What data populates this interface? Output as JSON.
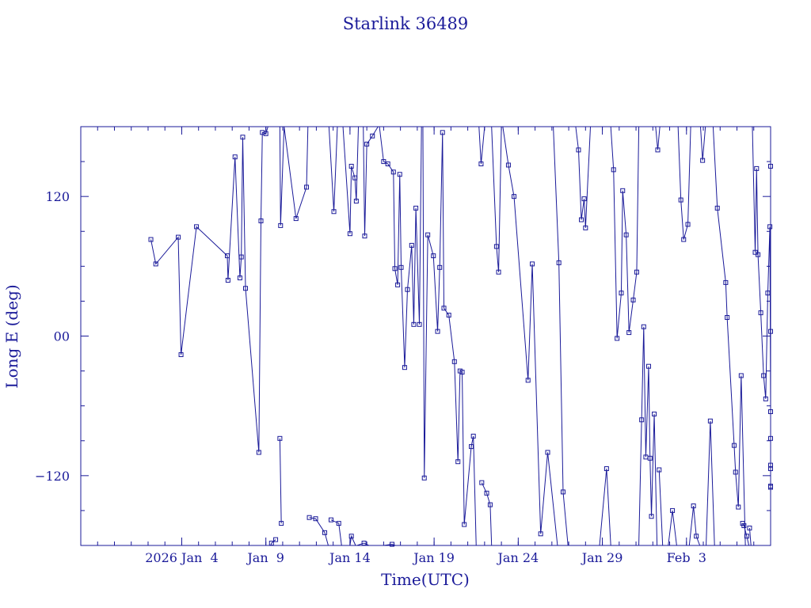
{
  "chart_data": {
    "type": "line",
    "title": "Starlink 36489",
    "xlabel": "Time(UTC)",
    "ylabel": "Long E (deg)",
    "xlim": [
      "2025-12-29T00:00",
      "2026-02-08T00:00"
    ],
    "ylim": [
      -180,
      180
    ],
    "x_ticks": [
      {
        "date": "2026-01-04",
        "label": "2026 Jan  4"
      },
      {
        "date": "2026-01-09",
        "label": "Jan  9"
      },
      {
        "date": "2026-01-14",
        "label": "Jan 14"
      },
      {
        "date": "2026-01-19",
        "label": "Jan 19"
      },
      {
        "date": "2026-01-24",
        "label": "Jan 24"
      },
      {
        "date": "2026-01-29",
        "label": "Jan 29"
      },
      {
        "date": "2026-02-03",
        "label": "Feb  3"
      }
    ],
    "y_ticks": [
      {
        "value": 120,
        "label": "120"
      },
      {
        "value": 0,
        "label": "00"
      },
      {
        "value": -120,
        "label": "−120"
      }
    ],
    "grid": false,
    "marker": "square",
    "color": "#1a1a99",
    "series": [
      {
        "points": [
          [
            "2026-01-02T04:00",
            83
          ],
          [
            "2026-01-02T11:00",
            62
          ],
          [
            "2026-01-03T19:00",
            85
          ],
          [
            "2026-01-03T23:00",
            -16
          ],
          [
            "2026-01-04T21:00",
            94
          ],
          [
            "2026-01-06T17:00",
            69
          ],
          [
            "2026-01-06T18:00",
            48
          ],
          [
            "2026-01-07T04:00",
            154
          ],
          [
            "2026-01-07T11:00",
            50
          ],
          [
            "2026-01-07T13:00",
            68
          ],
          [
            "2026-01-07T15:00",
            171
          ],
          [
            "2026-01-07T19:00",
            41
          ],
          [
            "2026-01-08T14:00",
            -100
          ],
          [
            "2026-01-08T17:00",
            99
          ],
          [
            "2026-01-08T19:00",
            175
          ],
          [
            "2026-01-09T00:00",
            174
          ],
          [
            "2026-01-09T03:00",
            180
          ]
        ]
      },
      {
        "points": [
          [
            "2026-01-09T07:00",
            -180
          ],
          [
            "2026-01-09T08:00",
            -178
          ],
          [
            "2026-01-09T14:00",
            -175
          ]
        ]
      },
      {
        "points": [
          [
            "2026-01-09T20:00",
            -88
          ],
          [
            "2026-01-09T22:00",
            -161
          ]
        ]
      },
      {
        "points": [
          [
            "2026-01-09T20:00",
            180
          ],
          [
            "2026-01-09T21:00",
            95
          ],
          [
            "2026-01-10T02:00",
            180
          ],
          [
            "2026-01-10T19:00",
            101
          ],
          [
            "2026-01-11T10:00",
            128
          ],
          [
            "2026-01-11T12:00",
            180
          ]
        ]
      },
      {
        "points": [
          [
            "2026-01-12T18:00",
            180
          ],
          [
            "2026-01-13T01:00",
            107
          ],
          [
            "2026-01-13T06:00",
            180
          ]
        ]
      },
      {
        "points": [
          [
            "2026-01-11T14:00",
            -156
          ],
          [
            "2026-01-11T23:00",
            -157
          ],
          [
            "2026-01-12T12:00",
            -169
          ],
          [
            "2026-01-12T17:00",
            -180
          ]
        ]
      },
      {
        "points": [
          [
            "2026-01-12T21:00",
            -158
          ],
          [
            "2026-01-13T08:00",
            -161
          ],
          [
            "2026-01-13T12:00",
            -180
          ]
        ]
      },
      {
        "points": [
          [
            "2026-01-14T00:00",
            -180
          ],
          [
            "2026-01-14T02:00",
            -172
          ],
          [
            "2026-01-14T08:00",
            -180
          ]
        ]
      },
      {
        "points": [
          [
            "2026-01-14T10:00",
            -180
          ],
          [
            "2026-01-14T20:00",
            -178
          ],
          [
            "2026-01-15T03:00",
            -180
          ]
        ]
      },
      {
        "points": [
          [
            "2026-01-16T00:00",
            -180
          ],
          [
            "2026-01-16T12:00",
            -179
          ],
          [
            "2026-01-16T17:00",
            -180
          ]
        ]
      },
      {
        "points": [
          [
            "2026-01-13T14:00",
            180
          ],
          [
            "2026-01-14T00:00",
            88
          ],
          [
            "2026-01-14T02:00",
            146
          ],
          [
            "2026-01-14T07:00",
            136
          ],
          [
            "2026-01-14T09:00",
            116
          ],
          [
            "2026-01-14T12:00",
            180
          ],
          [
            "2026-01-14T19:00",
            180
          ],
          [
            "2026-01-14T21:00",
            86
          ],
          [
            "2026-01-15T00:00",
            165
          ],
          [
            "2026-01-15T08:00",
            172
          ],
          [
            "2026-01-15T16:00",
            180
          ]
        ]
      },
      {
        "points": [
          [
            "2026-01-15T18:00",
            180
          ],
          [
            "2026-01-16T00:00",
            150
          ],
          [
            "2026-01-16T06:00",
            148
          ],
          [
            "2026-01-16T14:00",
            141
          ],
          [
            "2026-01-16T16:00",
            58
          ],
          [
            "2026-01-16T20:00",
            44
          ],
          [
            "2026-01-16T23:00",
            139
          ],
          [
            "2026-01-17T01:00",
            59
          ],
          [
            "2026-01-17T06:00",
            -27
          ],
          [
            "2026-01-17T10:00",
            40
          ],
          [
            "2026-01-17T16:00",
            78
          ],
          [
            "2026-01-17T19:00",
            10
          ],
          [
            "2026-01-17T22:00",
            110
          ],
          [
            "2026-01-18T03:00",
            10
          ],
          [
            "2026-01-18T06:00",
            180
          ]
        ]
      },
      {
        "points": [
          [
            "2026-01-18T08:00",
            180
          ],
          [
            "2026-01-18T10:00",
            -122
          ],
          [
            "2026-01-18T15:00",
            87
          ],
          [
            "2026-01-18T23:00",
            69
          ],
          [
            "2026-01-19T05:00",
            4
          ],
          [
            "2026-01-19T08:00",
            59
          ],
          [
            "2026-01-19T12:00",
            175
          ],
          [
            "2026-01-19T14:00",
            24
          ],
          [
            "2026-01-19T21:00",
            18
          ],
          [
            "2026-01-20T05:00",
            -22
          ],
          [
            "2026-01-20T10:00",
            -108
          ],
          [
            "2026-01-20T13:00",
            -30
          ],
          [
            "2026-01-20T16:00",
            -31
          ],
          [
            "2026-01-20T19:00",
            -162
          ],
          [
            "2026-01-21T05:00",
            -95
          ],
          [
            "2026-01-21T08:00",
            -86
          ],
          [
            "2026-01-21T12:00",
            -180
          ]
        ]
      },
      {
        "points": [
          [
            "2026-01-21T16:00",
            180
          ],
          [
            "2026-01-21T19:00",
            148
          ],
          [
            "2026-01-22T00:00",
            180
          ]
        ]
      },
      {
        "points": [
          [
            "2026-01-21T20:00",
            -126
          ],
          [
            "2026-01-22T03:00",
            -135
          ],
          [
            "2026-01-22T08:00",
            -145
          ],
          [
            "2026-01-22T10:00",
            -180
          ]
        ]
      },
      {
        "points": [
          [
            "2026-01-22T10:00",
            180
          ],
          [
            "2026-01-22T17:00",
            77
          ],
          [
            "2026-01-22T20:00",
            55
          ],
          [
            "2026-01-23T00:00",
            180
          ]
        ]
      },
      {
        "points": [
          [
            "2026-01-23T02:00",
            180
          ],
          [
            "2026-01-23T10:00",
            147
          ],
          [
            "2026-01-23T18:00",
            120
          ],
          [
            "2026-01-24T14:00",
            -38
          ],
          [
            "2026-01-24T20:00",
            62
          ],
          [
            "2026-01-25T08:00",
            -170
          ],
          [
            "2026-01-25T18:00",
            -100
          ],
          [
            "2026-01-26T08:00",
            -180
          ]
        ]
      },
      {
        "points": [
          [
            "2026-01-26T02:00",
            180
          ],
          [
            "2026-01-26T10:00",
            63
          ],
          [
            "2026-01-26T16:00",
            -134
          ],
          [
            "2026-01-26T23:00",
            -180
          ]
        ]
      },
      {
        "points": [
          [
            "2026-01-27T10:00",
            180
          ],
          [
            "2026-01-27T14:00",
            160
          ],
          [
            "2026-01-27T18:00",
            100
          ],
          [
            "2026-01-27T22:00",
            118
          ],
          [
            "2026-01-28T00:00",
            93
          ],
          [
            "2026-01-28T07:00",
            180
          ]
        ]
      },
      {
        "points": [
          [
            "2026-01-28T20:00",
            -180
          ],
          [
            "2026-01-29T06:00",
            -114
          ],
          [
            "2026-01-29T12:00",
            -180
          ]
        ]
      },
      {
        "points": [
          [
            "2026-01-29T12:00",
            180
          ],
          [
            "2026-01-29T16:00",
            143
          ],
          [
            "2026-01-29T21:00",
            -2
          ],
          [
            "2026-01-30T03:00",
            37
          ],
          [
            "2026-01-30T05:00",
            125
          ],
          [
            "2026-01-30T10:00",
            87
          ],
          [
            "2026-01-30T14:00",
            3
          ],
          [
            "2026-01-30T20:00",
            31
          ],
          [
            "2026-01-31T01:00",
            55
          ],
          [
            "2026-01-31T04:00",
            180
          ]
        ]
      },
      {
        "points": [
          [
            "2026-01-31T04:00",
            -180
          ],
          [
            "2026-01-31T08:00",
            -72
          ],
          [
            "2026-01-31T11:00",
            8
          ],
          [
            "2026-01-31T14:00",
            -104
          ],
          [
            "2026-01-31T18:00",
            -26
          ],
          [
            "2026-01-31T20:00",
            -105
          ],
          [
            "2026-01-31T22:00",
            -155
          ],
          [
            "2026-02-01T02:00",
            -67
          ],
          [
            "2026-02-01T06:00",
            -180
          ]
        ]
      },
      {
        "points": [
          [
            "2026-02-01T04:00",
            180
          ],
          [
            "2026-02-01T07:00",
            160
          ],
          [
            "2026-02-01T10:00",
            180
          ]
        ]
      },
      {
        "points": [
          [
            "2026-02-01T09:00",
            -115
          ],
          [
            "2026-02-01T14:00",
            -180
          ]
        ]
      },
      {
        "points": [
          [
            "2026-02-01T22:00",
            -180
          ],
          [
            "2026-02-02T04:00",
            -150
          ],
          [
            "2026-02-02T10:00",
            -180
          ]
        ]
      },
      {
        "points": [
          [
            "2026-02-02T12:00",
            180
          ],
          [
            "2026-02-02T16:00",
            117
          ],
          [
            "2026-02-02T20:00",
            83
          ],
          [
            "2026-02-03T02:00",
            96
          ],
          [
            "2026-02-03T06:00",
            180
          ]
        ]
      },
      {
        "points": [
          [
            "2026-02-03T04:00",
            -180
          ],
          [
            "2026-02-03T10:00",
            -146
          ],
          [
            "2026-02-03T14:00",
            -172
          ],
          [
            "2026-02-03T19:00",
            -180
          ]
        ]
      },
      {
        "points": [
          [
            "2026-02-03T20:00",
            180
          ],
          [
            "2026-02-03T23:00",
            151
          ],
          [
            "2026-02-04T03:00",
            180
          ]
        ]
      },
      {
        "points": [
          [
            "2026-02-04T04:00",
            -180
          ],
          [
            "2026-02-04T10:00",
            -73
          ],
          [
            "2026-02-04T16:00",
            -180
          ]
        ]
      },
      {
        "points": [
          [
            "2026-02-04T14:00",
            180
          ],
          [
            "2026-02-04T20:00",
            110
          ],
          [
            "2026-02-05T08:00",
            46
          ],
          [
            "2026-02-05T10:00",
            16
          ],
          [
            "2026-02-05T20:00",
            -94
          ],
          [
            "2026-02-05T22:00",
            -117
          ],
          [
            "2026-02-06T02:00",
            -147
          ],
          [
            "2026-02-06T06:00",
            -34
          ],
          [
            "2026-02-06T12:00",
            -180
          ]
        ]
      },
      {
        "points": [
          [
            "2026-02-06T08:00",
            -161
          ],
          [
            "2026-02-06T10:00",
            -163
          ],
          [
            "2026-02-06T14:00",
            -172
          ],
          [
            "2026-02-06T17:00",
            -180
          ]
        ]
      },
      {
        "points": [
          [
            "2026-02-06T18:00",
            -165
          ],
          [
            "2026-02-06T20:00",
            -180
          ]
        ]
      },
      {
        "points": [
          [
            "2026-02-06T22:00",
            180
          ],
          [
            "2026-02-07T02:00",
            72
          ],
          [
            "2026-02-07T04:00",
            144
          ],
          [
            "2026-02-07T06:00",
            70
          ],
          [
            "2026-02-07T10:00",
            20
          ],
          [
            "2026-02-07T14:00",
            -34
          ],
          [
            "2026-02-07T17:00",
            -54
          ],
          [
            "2026-02-07T20:00",
            37
          ],
          [
            "2026-02-07T23:00",
            94
          ],
          [
            "2026-02-08T02:00",
            -65
          ],
          [
            "2026-02-08T06:00",
            -180
          ]
        ]
      },
      {
        "points": [
          [
            "2026-02-08T06:00",
            -180
          ],
          [
            "2026-02-08T10:00",
            -129
          ],
          [
            "2026-02-08T14:00",
            -180
          ]
        ]
      },
      {
        "points": [
          [
            "2026-02-08T09:00",
            180
          ],
          [
            "2026-02-08T11:00",
            146
          ],
          [
            "2026-02-08T14:00",
            180
          ]
        ]
      },
      {
        "points": [
          [
            "2026-02-08T16:00",
            -130
          ],
          [
            "2026-02-08T20:00",
            -88
          ],
          [
            "2026-02-08T23:00",
            4
          ],
          [
            "2026-02-09T03:00",
            -114
          ],
          [
            "2026-02-09T13:00",
            -111
          ]
        ]
      }
    ]
  }
}
